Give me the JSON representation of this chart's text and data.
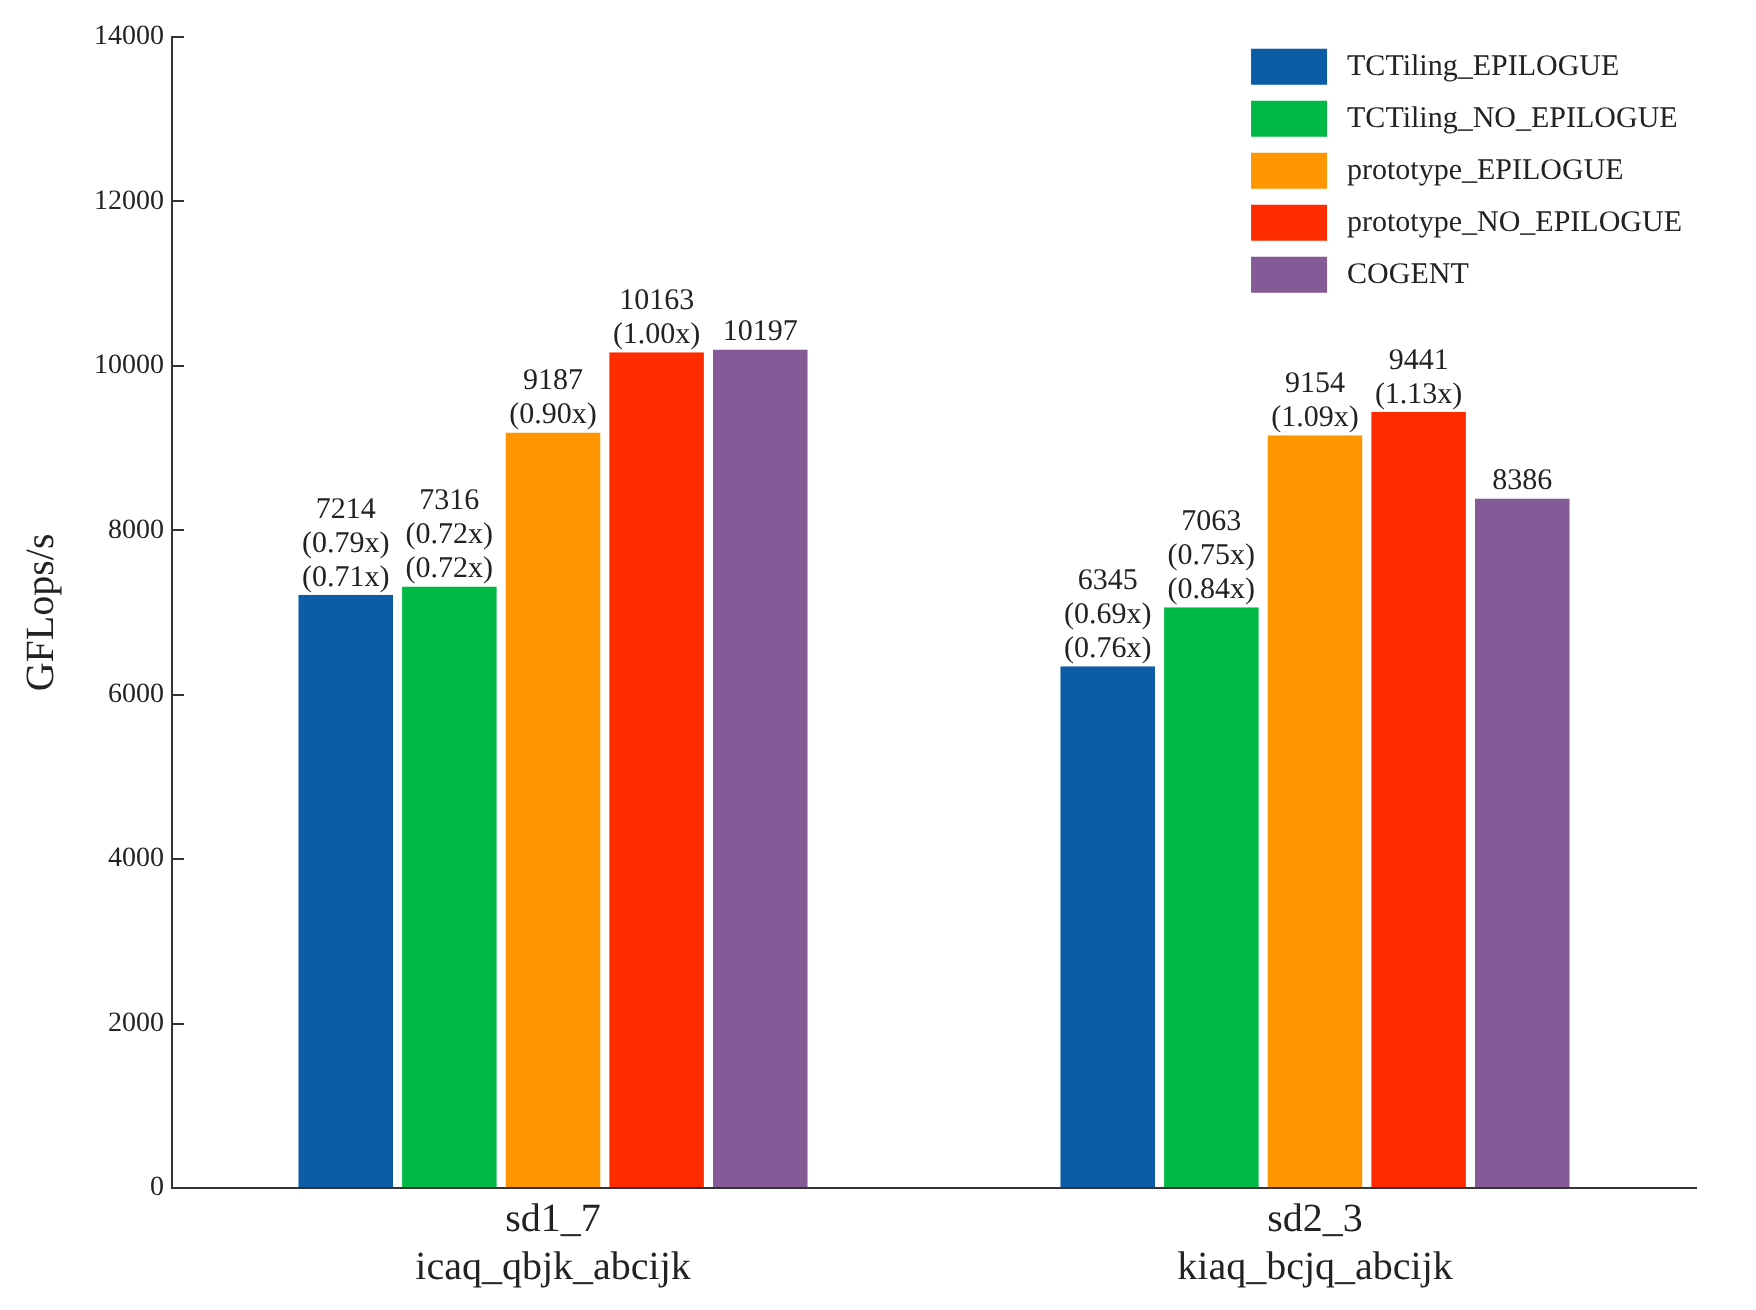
{
  "chart_data": {
    "type": "bar",
    "ylabel": "GFLops/s",
    "categories": [
      "sd1_7\nicaq_qbjk_abcijk",
      "sd2_3\nkiaq_bcjq_abcijk"
    ],
    "series": [
      {
        "name": "TCTiling_EPILOGUE",
        "color": "#0c5da5",
        "values": [
          7214,
          6345
        ],
        "value_labels": [
          "7214\n(0.79x)\n(0.71x)",
          "6345\n(0.69x)\n(0.76x)"
        ]
      },
      {
        "name": "TCTiling_NO_EPILOGUE",
        "color": "#00b945",
        "values": [
          7316,
          7063
        ],
        "value_labels": [
          "7316\n(0.72x)\n(0.72x)",
          "7063\n(0.75x)\n(0.84x)"
        ]
      },
      {
        "name": "prototype_EPILOGUE",
        "color": "#ff9500",
        "values": [
          9187,
          9154
        ],
        "value_labels": [
          "9187\n(0.90x)",
          "9154\n(1.09x)"
        ]
      },
      {
        "name": "prototype_NO_EPILOGUE",
        "color": "#ff2c00",
        "values": [
          10163,
          9441
        ],
        "value_labels": [
          "10163\n(1.00x)",
          "9441\n(1.13x)"
        ]
      },
      {
        "name": "COGENT",
        "color": "#845b97",
        "values": [
          10197,
          8386
        ],
        "value_labels": [
          "10197",
          "8386"
        ]
      }
    ],
    "ylim": [
      0,
      14000
    ],
    "yticks": [
      0,
      2000,
      4000,
      6000,
      8000,
      10000,
      12000,
      14000
    ],
    "legend": "top right",
    "grid": false
  }
}
